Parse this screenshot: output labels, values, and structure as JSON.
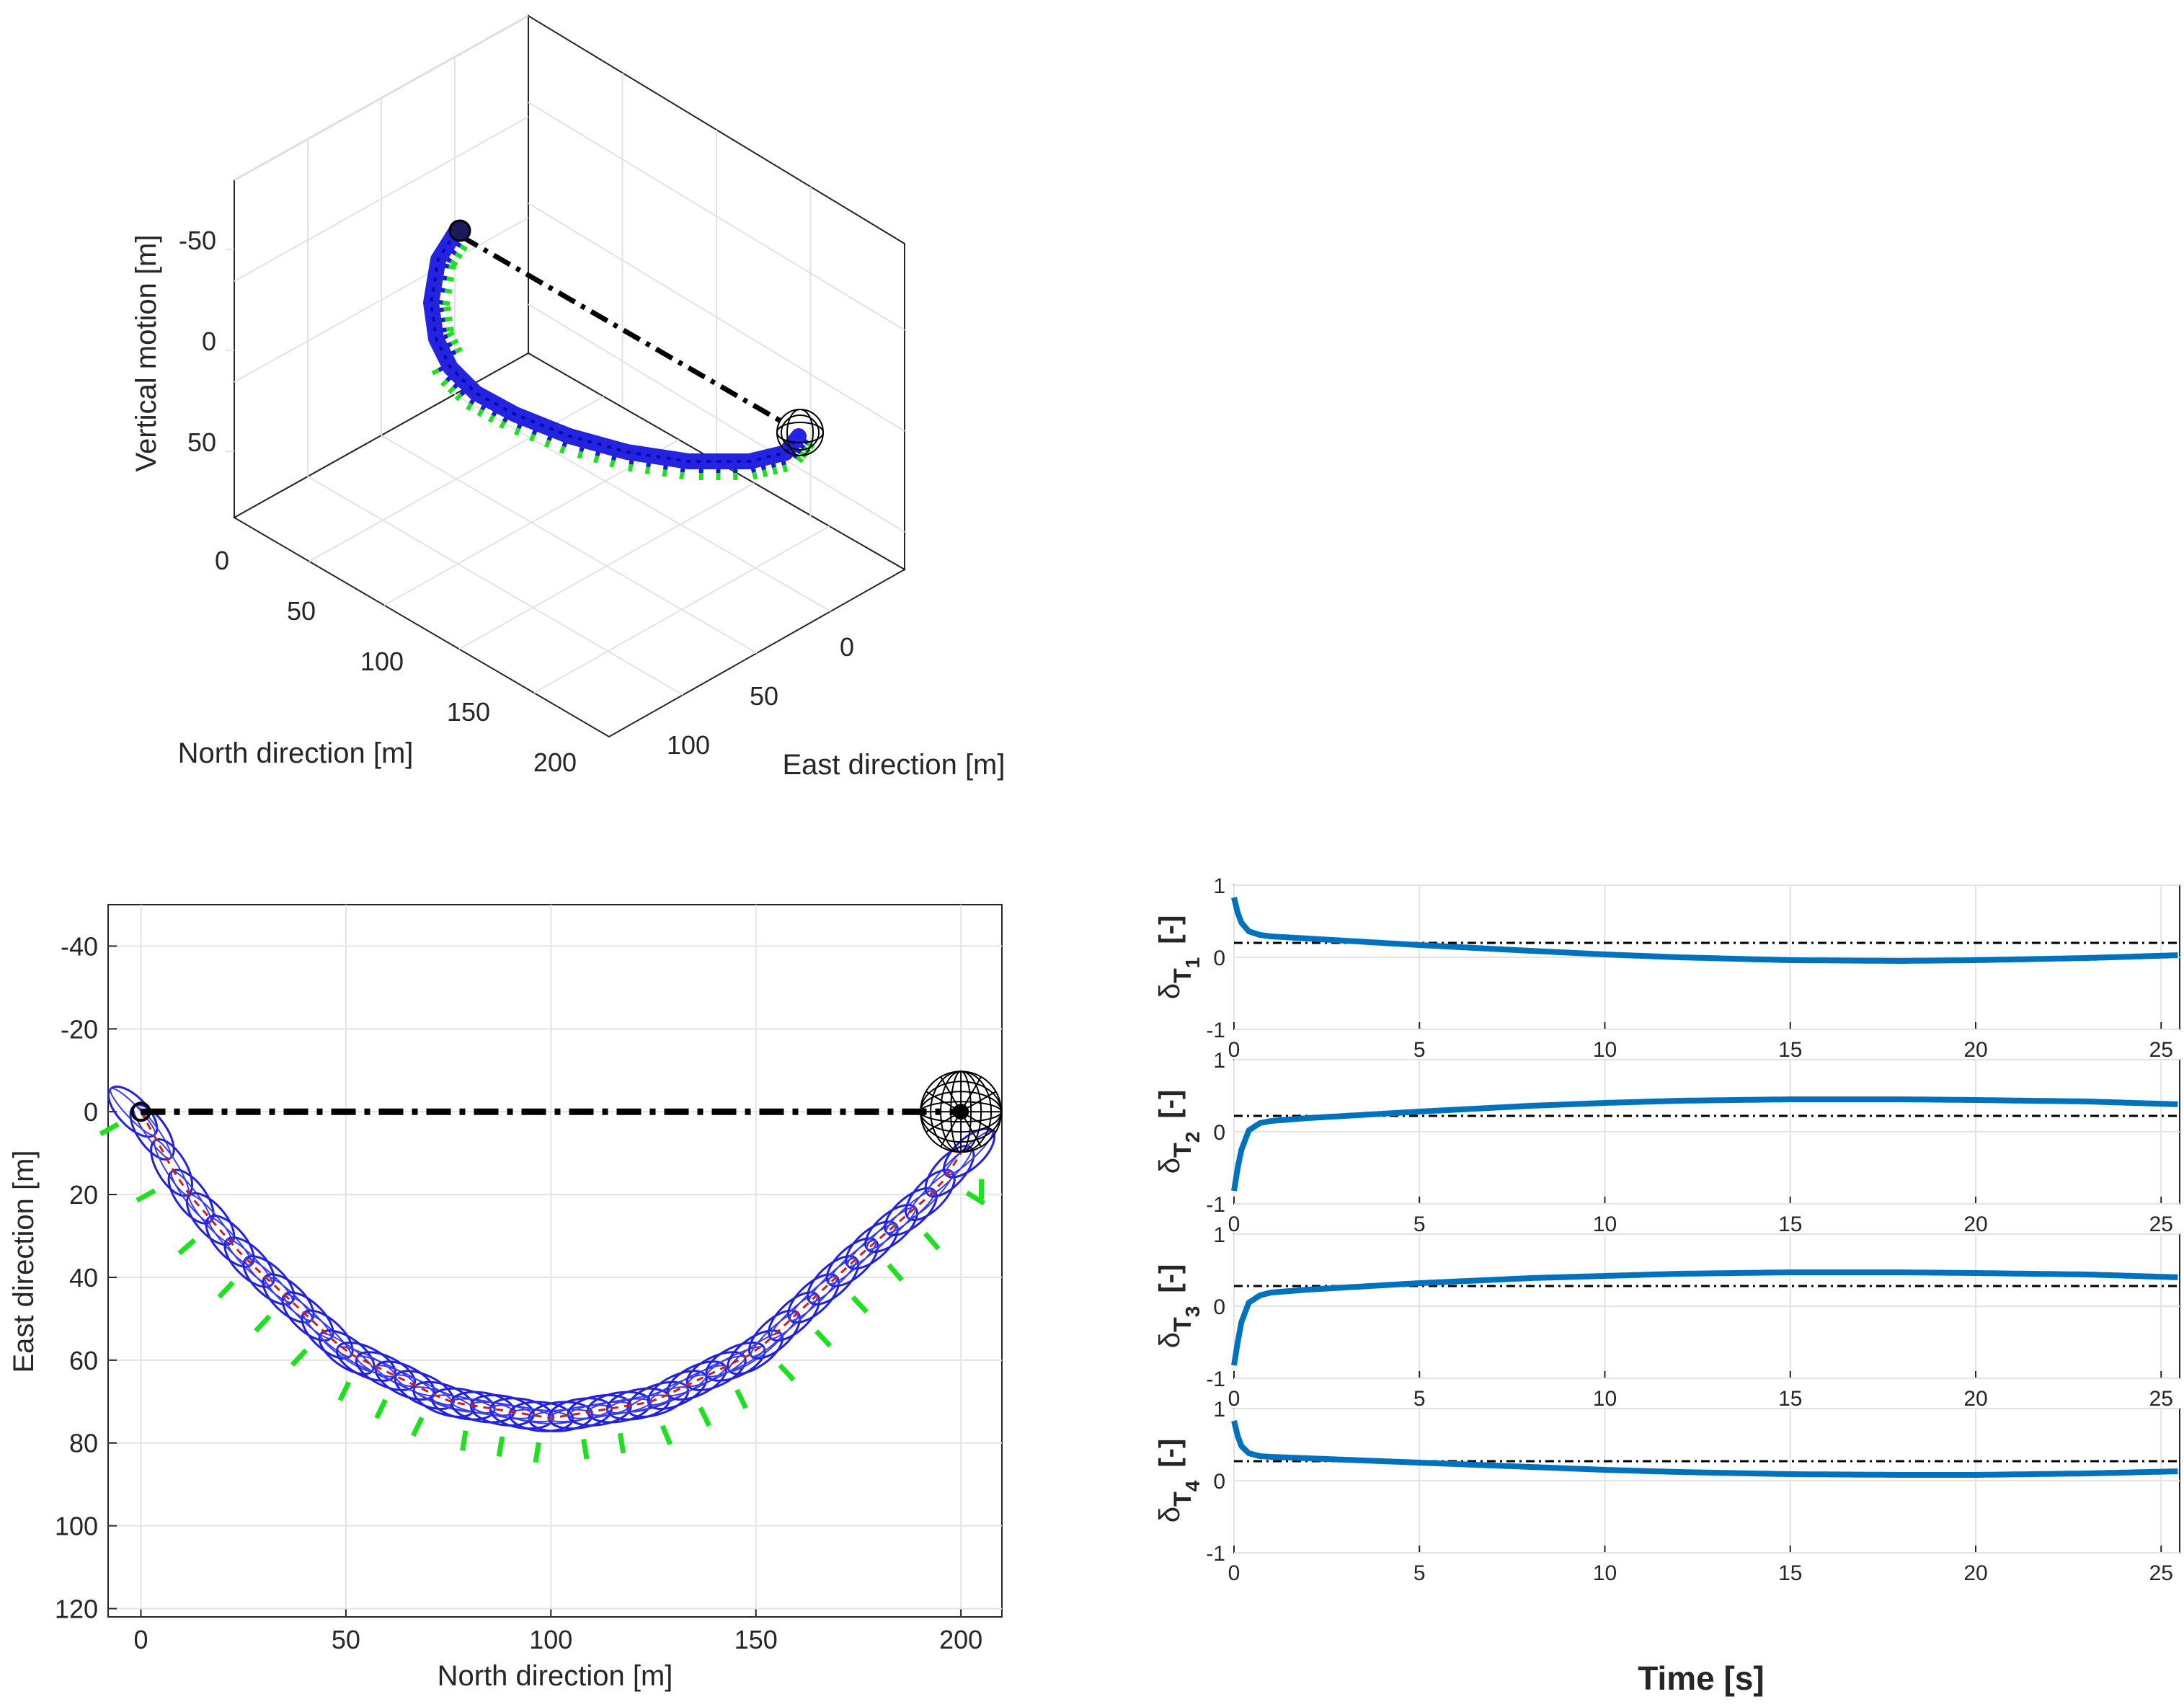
{
  "chart_data": [
    {
      "type": "line",
      "panel": "3d-trajectory",
      "title": "",
      "xlabel": "North direction [m]",
      "ylabel": "East direction [m]",
      "zlabel": "Vertical motion [m]",
      "north_ticks": [
        "0",
        "50",
        "100",
        "150",
        "200"
      ],
      "east_ticks": [
        "0",
        "50",
        "100"
      ],
      "vertical_ticks": [
        "-50",
        "0",
        "50"
      ],
      "xlim": [
        0,
        200
      ],
      "ylim": [
        -5,
        120
      ],
      "zlim": [
        -80,
        90
      ],
      "series": [
        {
          "name": "trajectory",
          "style": "blue ellipsoids",
          "north": [
            0,
            20,
            50,
            100,
            150,
            180,
            200
          ],
          "east": [
            0,
            25,
            55,
            75,
            55,
            25,
            0
          ],
          "vertical": [
            -50,
            -30,
            0,
            45,
            65,
            60,
            55
          ]
        },
        {
          "name": "direct-line",
          "style": "black dash-dot",
          "north": [
            0,
            200
          ],
          "east": [
            0,
            0
          ],
          "vertical": [
            -50,
            55
          ]
        }
      ]
    },
    {
      "type": "line",
      "panel": "top-view",
      "xlabel": "North direction [m]",
      "ylabel": "East direction [m]",
      "xlim": [
        -8,
        210
      ],
      "ylim": [
        -50,
        122
      ],
      "xticks": [
        "0",
        "50",
        "100",
        "150",
        "200"
      ],
      "yticks": [
        "-40",
        "-20",
        "0",
        "20",
        "40",
        "60",
        "80",
        "100",
        "120"
      ],
      "series": [
        {
          "name": "trajectory",
          "style": "blue ellipsoids with red centerline",
          "x": [
            0,
            10,
            25,
            50,
            75,
            100,
            125,
            150,
            175,
            195,
            200
          ],
          "y": [
            0,
            18,
            35,
            58,
            70,
            74,
            70,
            58,
            35,
            18,
            10
          ]
        },
        {
          "name": "direct-line",
          "style": "black dash-dot",
          "x": [
            0,
            200
          ],
          "y": [
            0,
            0
          ]
        },
        {
          "name": "target",
          "style": "black sphere",
          "x": [
            200
          ],
          "y": [
            0
          ]
        }
      ]
    },
    {
      "type": "line",
      "panel": "throttle-subplots",
      "xlabel": "Time [s]",
      "xticks": [
        "0",
        "5",
        "10",
        "15",
        "20",
        "25"
      ],
      "yticks": [
        "-1",
        "0",
        "1"
      ],
      "xlim": [
        0,
        25.5
      ],
      "ylim": [
        -1,
        1
      ],
      "subplots": [
        {
          "ylabel": "δ",
          "sub": "T",
          "index": "1",
          "unit": "[-]",
          "ref": 0.2,
          "t": [
            0,
            0.1,
            0.2,
            0.4,
            0.7,
            1.0,
            2,
            3,
            5,
            8,
            10,
            12,
            15,
            18,
            20,
            23,
            25.5
          ],
          "v": [
            0.83,
            0.62,
            0.48,
            0.36,
            0.31,
            0.29,
            0.26,
            0.23,
            0.17,
            0.09,
            0.04,
            0.0,
            -0.04,
            -0.05,
            -0.04,
            -0.01,
            0.03
          ]
        },
        {
          "ylabel": "δ",
          "sub": "T",
          "index": "2",
          "unit": "[-]",
          "ref": 0.22,
          "t": [
            0,
            0.1,
            0.2,
            0.4,
            0.7,
            1.0,
            2,
            3,
            5,
            8,
            10,
            12,
            15,
            18,
            20,
            23,
            25.5
          ],
          "v": [
            -0.82,
            -0.5,
            -0.25,
            0.02,
            0.12,
            0.15,
            0.19,
            0.22,
            0.28,
            0.36,
            0.4,
            0.43,
            0.45,
            0.45,
            0.44,
            0.42,
            0.38
          ]
        },
        {
          "ylabel": "δ",
          "sub": "T",
          "index": "3",
          "unit": "[-]",
          "ref": 0.28,
          "t": [
            0,
            0.1,
            0.2,
            0.4,
            0.7,
            1.0,
            2,
            3,
            5,
            8,
            10,
            12,
            15,
            18,
            20,
            23,
            25.5
          ],
          "v": [
            -0.82,
            -0.5,
            -0.22,
            0.05,
            0.15,
            0.19,
            0.23,
            0.26,
            0.32,
            0.39,
            0.42,
            0.45,
            0.47,
            0.47,
            0.46,
            0.44,
            0.4
          ]
        },
        {
          "ylabel": "δ",
          "sub": "T",
          "index": "4",
          "unit": "[-]",
          "ref": 0.27,
          "t": [
            0,
            0.1,
            0.2,
            0.4,
            0.7,
            1.0,
            2,
            3,
            5,
            8,
            10,
            12,
            15,
            18,
            20,
            23,
            25.5
          ],
          "v": [
            0.83,
            0.62,
            0.48,
            0.38,
            0.34,
            0.33,
            0.31,
            0.29,
            0.25,
            0.19,
            0.15,
            0.12,
            0.09,
            0.08,
            0.08,
            0.1,
            0.13
          ]
        }
      ]
    }
  ]
}
